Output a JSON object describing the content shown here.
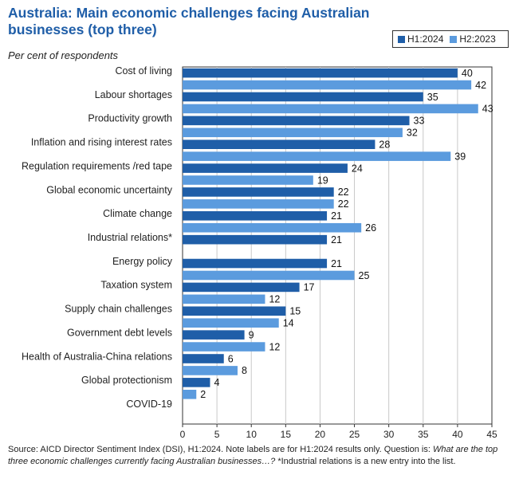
{
  "title": "Australia: Main economic challenges facing Australian businesses (top three)",
  "subtitle": "Per cent of respondents",
  "legend": [
    {
      "label": "H1:2024",
      "color": "#1f5ea8"
    },
    {
      "label": "H2:2023",
      "color": "#5b9bde"
    }
  ],
  "source": {
    "text": "Source: AICD Director Sentiment Index (DSI), H1:2024. Note labels are for H1:2024 results only. Question is: ",
    "question": "What are the top three economic challenges currently facing Australian businesses…?",
    "footnote": " *Industrial relations is a new entry into the list."
  },
  "chart_data": {
    "type": "bar",
    "orientation": "horizontal",
    "categories": [
      "Cost of living",
      "Labour shortages",
      "Productivity growth",
      "Inflation and rising interest rates",
      "Regulation requirements /red tape",
      "Global economic uncertainty",
      "Climate change",
      "Industrial relations*",
      "Energy policy",
      "Taxation system",
      "Supply chain challenges",
      "Government debt levels",
      "Health of Australia-China relations",
      "Global protectionism",
      "COVID-19"
    ],
    "series": [
      {
        "name": "H1:2024",
        "color": "#1f5ea8",
        "values": [
          40,
          35,
          33,
          28,
          24,
          22,
          21,
          21,
          21,
          17,
          15,
          9,
          6,
          4,
          null
        ]
      },
      {
        "name": "H2:2023",
        "color": "#5b9bde",
        "values": [
          42,
          43,
          32,
          39,
          19,
          22,
          26,
          null,
          25,
          12,
          14,
          12,
          8,
          2,
          null
        ]
      }
    ],
    "x_ticks": [
      0,
      5,
      10,
      15,
      20,
      25,
      30,
      35,
      40,
      45
    ],
    "xlim": [
      0,
      45
    ],
    "grid": true
  }
}
